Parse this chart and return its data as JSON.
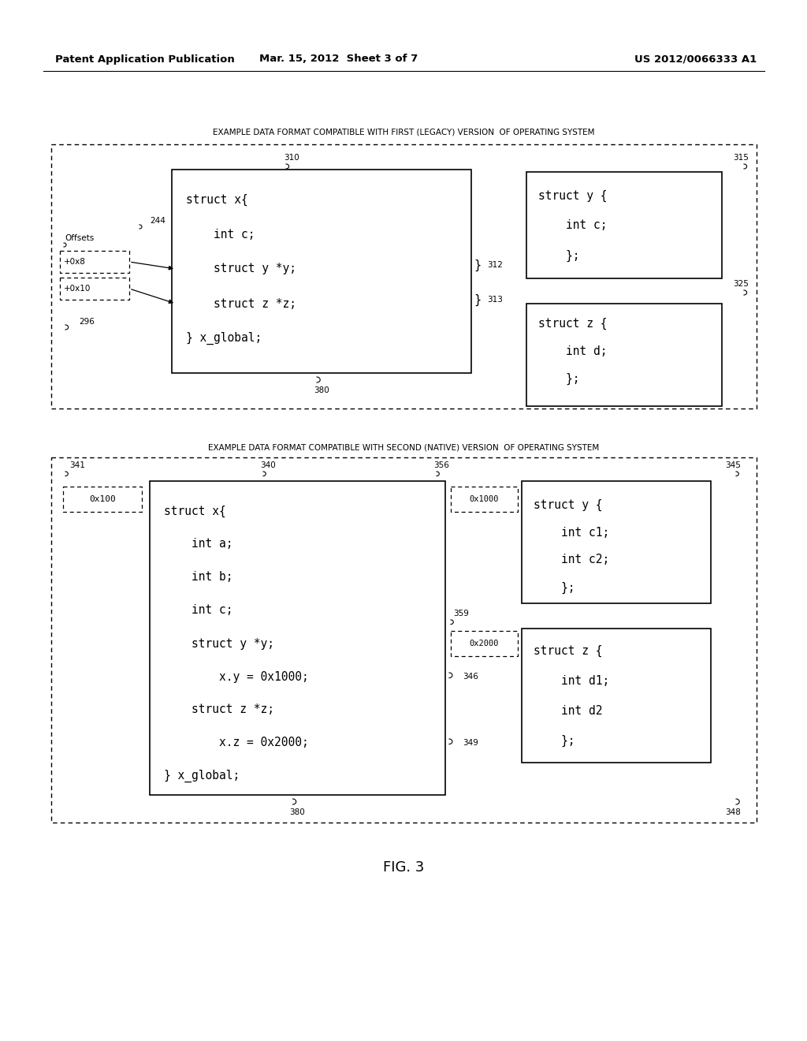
{
  "bg_color": "#ffffff",
  "header_left": "Patent Application Publication",
  "header_mid": "Mar. 15, 2012  Sheet 3 of 7",
  "header_right": "US 2012/0066333 A1",
  "fig_label": "FIG. 3",
  "top_section_title": "EXAMPLE DATA FORMAT COMPATIBLE WITH FIRST (LEGACY) VERSION  OF OPERATING SYSTEM",
  "bottom_section_title": "EXAMPLE DATA FORMAT COMPATIBLE WITH SECOND (NATIVE) VERSION  OF OPERATING SYSTEM"
}
